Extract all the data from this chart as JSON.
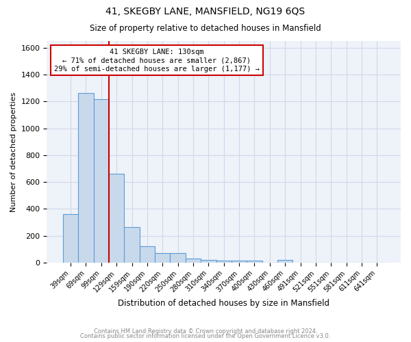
{
  "title": "41, SKEGBY LANE, MANSFIELD, NG19 6QS",
  "subtitle": "Size of property relative to detached houses in Mansfield",
  "xlabel": "Distribution of detached houses by size in Mansfield",
  "ylabel": "Number of detached properties",
  "footnote1": "Contains HM Land Registry data © Crown copyright and database right 2024.",
  "footnote2": "Contains public sector information licensed under the Open Government Licence v3.0.",
  "annotation_line1": "41 SKEGBY LANE: 130sqm",
  "annotation_line2": "← 71% of detached houses are smaller (2,867)",
  "annotation_line3": "29% of semi-detached houses are larger (1,177) →",
  "bar_color": "#c8d9ec",
  "bar_edge_color": "#5b9bd5",
  "grid_color": "#d0d8e8",
  "bg_color": "#eef2f9",
  "vline_color": "#cc0000",
  "annotation_box_color": "#ffffff",
  "annotation_box_edge": "#cc0000",
  "categories": [
    "39sqm",
    "69sqm",
    "99sqm",
    "129sqm",
    "159sqm",
    "190sqm",
    "220sqm",
    "250sqm",
    "280sqm",
    "310sqm",
    "340sqm",
    "370sqm",
    "400sqm",
    "430sqm",
    "460sqm",
    "491sqm",
    "521sqm",
    "551sqm",
    "581sqm",
    "611sqm",
    "641sqm"
  ],
  "values": [
    362,
    1265,
    1215,
    660,
    263,
    122,
    72,
    72,
    33,
    20,
    15,
    15,
    15,
    0,
    20,
    0,
    0,
    0,
    0,
    0,
    0
  ],
  "vline_position": 2.5,
  "ylim": [
    0,
    1650
  ],
  "yticks": [
    0,
    200,
    400,
    600,
    800,
    1000,
    1200,
    1400,
    1600
  ]
}
